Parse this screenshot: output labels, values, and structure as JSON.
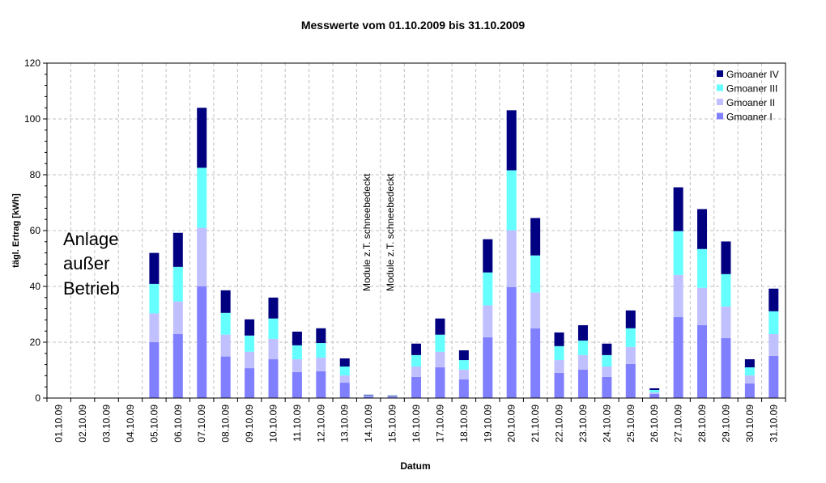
{
  "chart_data": {
    "type": "bar",
    "stacked": true,
    "title": "Messwerte vom 01.10.2009 bis 31.10.2009",
    "xlabel": "Datum",
    "ylabel": "tägl. Ertrag [kWh]",
    "ylim": [
      0,
      120
    ],
    "yticks": [
      0,
      20,
      40,
      60,
      80,
      100,
      120
    ],
    "grid": true,
    "legend_position": "top-right",
    "categories": [
      "01.10.09",
      "02.10.09",
      "03.10.09",
      "04.10.09",
      "05.10.09",
      "06.10.09",
      "07.10.09",
      "08.10.09",
      "09.10.09",
      "10.10.09",
      "11.10.09",
      "12.10.09",
      "13.10.09",
      "14.10.09",
      "15.10.09",
      "16.10.09",
      "17.10.09",
      "18.10.09",
      "19.10.09",
      "20.10.09",
      "21.10.09",
      "22.10.09",
      "23.10.09",
      "24.10.09",
      "25.10.09",
      "26.10.09",
      "27.10.09",
      "28.10.09",
      "29.10.09",
      "30.10.09",
      "31.10.09"
    ],
    "series": [
      {
        "name": "Gmoaner I",
        "color": "#8080ff",
        "values": [
          0,
          0,
          0,
          0,
          20.0,
          22.9,
          40.0,
          14.9,
          10.7,
          13.9,
          9.3,
          9.6,
          5.5,
          0.6,
          0.4,
          7.6,
          11.0,
          6.7,
          21.8,
          39.8,
          25.0,
          9.0,
          10.2,
          7.6,
          12.2,
          1.5,
          29.0,
          26.1,
          21.5,
          5.2,
          15.1
        ]
      },
      {
        "name": "Gmoaner II",
        "color": "#c0c0ff",
        "values": [
          0,
          0,
          0,
          0,
          10.3,
          11.7,
          21.0,
          7.8,
          5.9,
          7.3,
          4.6,
          4.9,
          2.6,
          0.3,
          0.2,
          3.7,
          5.6,
          3.5,
          11.4,
          20.3,
          12.8,
          4.6,
          5.2,
          3.7,
          6.1,
          0.5,
          15.1,
          13.4,
          11.3,
          2.9,
          7.8
        ]
      },
      {
        "name": "Gmoaner III",
        "color": "#66ffff",
        "values": [
          0,
          0,
          0,
          0,
          10.6,
          12.4,
          21.5,
          7.8,
          5.8,
          7.3,
          5.0,
          5.2,
          3.2,
          0.1,
          0.1,
          4.1,
          6.1,
          3.4,
          11.8,
          21.5,
          13.3,
          5.0,
          5.2,
          4.1,
          6.7,
          0.9,
          15.7,
          13.9,
          11.6,
          2.9,
          8.2
        ]
      },
      {
        "name": "Gmoaner IV",
        "color": "#000080",
        "values": [
          0,
          0,
          0,
          0,
          11.1,
          12.2,
          21.5,
          8.1,
          5.8,
          7.5,
          4.9,
          5.3,
          2.9,
          0.2,
          0.2,
          4.1,
          5.8,
          3.5,
          11.9,
          21.5,
          13.4,
          4.9,
          5.5,
          4.1,
          6.4,
          0.6,
          15.7,
          14.3,
          11.7,
          2.9,
          8.1
        ]
      }
    ],
    "annotations": {
      "out_of_service": [
        "Anlage",
        "außer",
        "Betrieb"
      ],
      "snow_14": "Module z.T. schneebedeckt",
      "snow_15": "Module z.T. schneebedeckt"
    }
  }
}
